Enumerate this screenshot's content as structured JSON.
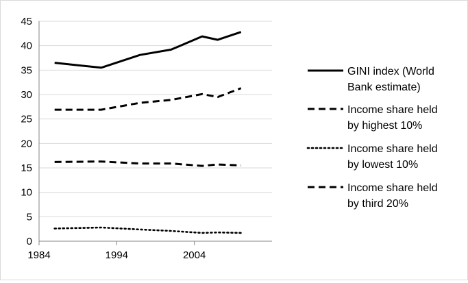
{
  "chart_data": {
    "type": "line",
    "title": "",
    "xlabel": "",
    "ylabel": "",
    "xlim": [
      1984,
      2014
    ],
    "ylim": [
      0,
      45
    ],
    "x_ticks": [
      "1984",
      "1994",
      "2004"
    ],
    "y_ticks": [
      "0",
      "5",
      "10",
      "15",
      "20",
      "25",
      "30",
      "35",
      "40",
      "45"
    ],
    "grid": "horizontal",
    "legend_position": "right",
    "series": [
      {
        "name": "GINI index (World Bank estimate)",
        "legend_lines": [
          "GINI index (World",
          "Bank estimate)"
        ],
        "style": "solid",
        "color": "#000000",
        "points": [
          {
            "x": 1986,
            "y": 36.5
          },
          {
            "x": 1992,
            "y": 35.5
          },
          {
            "x": 1997,
            "y": 38.1
          },
          {
            "x": 2001,
            "y": 39.2
          },
          {
            "x": 2005,
            "y": 41.9
          },
          {
            "x": 2007,
            "y": 41.2
          },
          {
            "x": 2010,
            "y": 42.8
          }
        ]
      },
      {
        "name": "Income share held by highest 10%",
        "legend_lines": [
          "Income share held",
          "by highest 10%"
        ],
        "style": "dashed",
        "color": "#000000",
        "points": [
          {
            "x": 1986,
            "y": 26.9
          },
          {
            "x": 1992,
            "y": 26.9
          },
          {
            "x": 1997,
            "y": 28.3
          },
          {
            "x": 2001,
            "y": 28.9
          },
          {
            "x": 2005,
            "y": 30.1
          },
          {
            "x": 2007,
            "y": 29.5
          },
          {
            "x": 2010,
            "y": 31.3
          }
        ]
      },
      {
        "name": "Income share held by lowest 10%",
        "legend_lines": [
          "Income share held",
          "by lowest 10%"
        ],
        "style": "dotted",
        "color": "#000000",
        "points": [
          {
            "x": 1986,
            "y": 2.6
          },
          {
            "x": 1992,
            "y": 2.8
          },
          {
            "x": 1997,
            "y": 2.4
          },
          {
            "x": 2001,
            "y": 2.1
          },
          {
            "x": 2005,
            "y": 1.7
          },
          {
            "x": 2007,
            "y": 1.8
          },
          {
            "x": 2010,
            "y": 1.7
          }
        ]
      },
      {
        "name": "Income share held by third 20%",
        "legend_lines": [
          "Income share held",
          "by third 20%"
        ],
        "style": "dashed",
        "color": "#000000",
        "points": [
          {
            "x": 1986,
            "y": 16.2
          },
          {
            "x": 1992,
            "y": 16.3
          },
          {
            "x": 1997,
            "y": 15.9
          },
          {
            "x": 2001,
            "y": 15.9
          },
          {
            "x": 2005,
            "y": 15.4
          },
          {
            "x": 2007,
            "y": 15.7
          },
          {
            "x": 2010,
            "y": 15.5
          }
        ]
      }
    ]
  }
}
